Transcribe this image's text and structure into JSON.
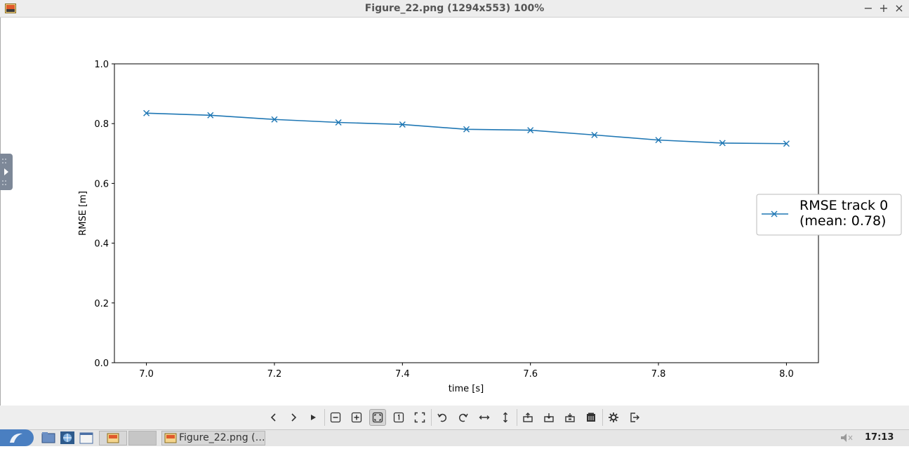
{
  "window": {
    "title": "Figure_22.png (1294x553) 100%",
    "minimize_glyph": "−",
    "maximize_glyph": "+",
    "close_glyph": "×"
  },
  "chart_data": {
    "type": "line",
    "xlabel": "time [s]",
    "ylabel": "RMSE [m]",
    "xlim": [
      6.95,
      8.05
    ],
    "ylim": [
      0.0,
      1.0
    ],
    "x_ticks": [
      "7.0",
      "7.2",
      "7.4",
      "7.6",
      "7.8",
      "8.0"
    ],
    "y_ticks": [
      "0.0",
      "0.2",
      "0.4",
      "0.6",
      "0.8",
      "1.0"
    ],
    "x": [
      7.0,
      7.1,
      7.2,
      7.3,
      7.4,
      7.5,
      7.6,
      7.7,
      7.8,
      7.9,
      8.0
    ],
    "series": [
      {
        "name": "RMSE track 0\n(mean: 0.78)",
        "legend_line1": "RMSE track 0",
        "legend_line2": "(mean: 0.78)",
        "marker": "x",
        "color": "#1f77b4",
        "values": [
          0.835,
          0.828,
          0.814,
          0.804,
          0.797,
          0.781,
          0.778,
          0.762,
          0.745,
          0.735,
          0.733
        ]
      }
    ],
    "grid": false,
    "legend_position": "right"
  },
  "toolbar": {
    "icons": [
      "prev-icon",
      "next-icon",
      "play-icon",
      "zoom-out-icon",
      "zoom-in-icon",
      "fit-icon",
      "actual-size-icon",
      "fullscreen-icon",
      "rotate-left-icon",
      "rotate-right-icon",
      "flip-horizontal-icon",
      "flip-vertical-icon",
      "open-icon",
      "save-icon",
      "save-as-icon",
      "delete-icon",
      "settings-icon",
      "exit-icon"
    ]
  },
  "taskbar": {
    "task_label": "Figure_22.png (…",
    "clock": "17:13"
  }
}
